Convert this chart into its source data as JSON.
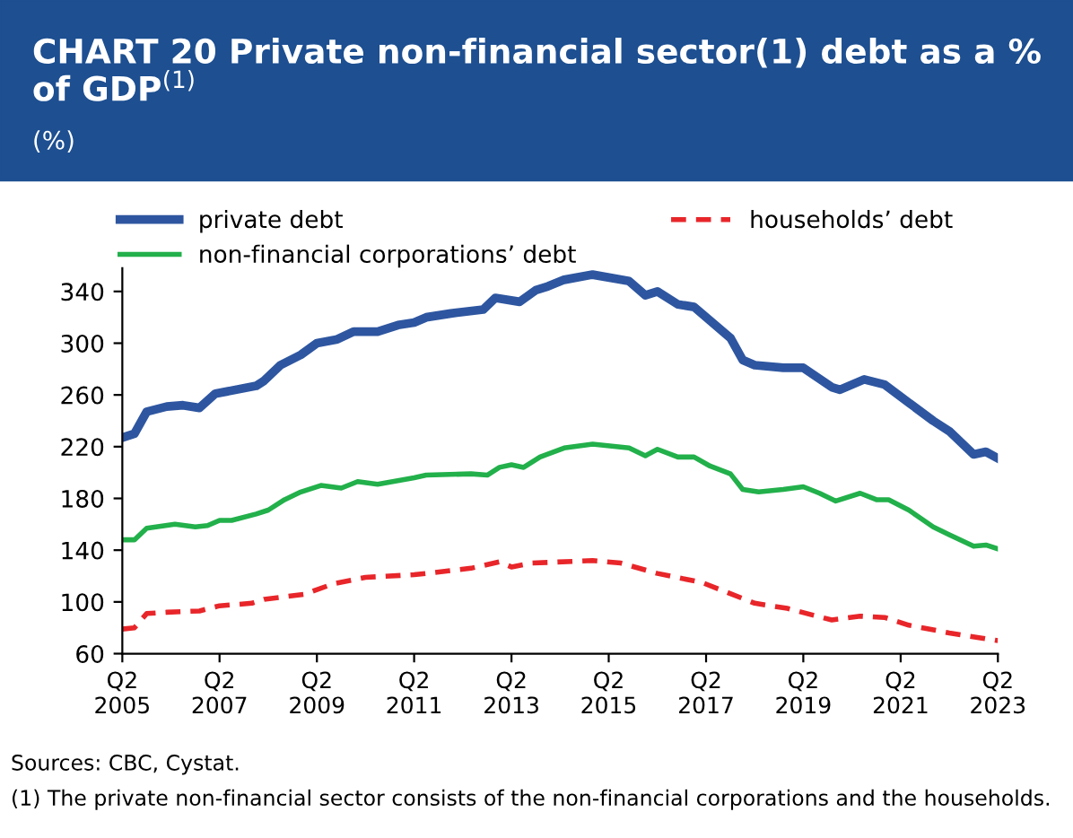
{
  "chart_data": {
    "type": "line",
    "title": "CHART 20 Private non-financial sector(1) debt as a % of GDP$^{(1)}$",
    "subtitle": "(%)",
    "xlim": [
      "2005-04",
      "2023-04"
    ],
    "xticks": [
      {
        "value": "2005-04",
        "label": "Q2\n2005"
      },
      {
        "value": "2007-04",
        "label": "Q2\n2007"
      },
      {
        "value": "2009-04",
        "label": "Q2\n2009"
      },
      {
        "value": "2011-04",
        "label": "Q2\n2011"
      },
      {
        "value": "2013-04",
        "label": "Q2\n2013"
      },
      {
        "value": "2015-04",
        "label": "Q2\n2015"
      },
      {
        "value": "2017-04",
        "label": "Q2\n2017"
      },
      {
        "value": "2019-04",
        "label": "Q2\n2019"
      },
      {
        "value": "2021-04",
        "label": "Q2\n2021"
      },
      {
        "value": "2023-04",
        "label": "Q2\n2023"
      }
    ],
    "ylim": [
      60,
      358
    ],
    "yticks": [
      60,
      100,
      140,
      180,
      220,
      260,
      300,
      340
    ],
    "grid": false,
    "legend": "top",
    "series": [
      {
        "name": "private debt",
        "color": "#2e56a0",
        "line_style": "solid",
        "x": [
          "2005-04",
          "2005-07",
          "2005-10",
          "2006-03",
          "2006-07",
          "2006-11",
          "2007-03",
          "2008-01",
          "2008-03",
          "2008-07",
          "2008-12",
          "2009-04",
          "2009-09",
          "2010-01",
          "2010-04",
          "2010-07",
          "2010-12",
          "2011-04",
          "2011-07",
          "2012-01",
          "2012-09",
          "2012-12",
          "2013-06",
          "2013-10",
          "2014-01",
          "2014-05",
          "2014-12",
          "2015-09",
          "2016-01",
          "2016-04",
          "2016-09",
          "2017-01",
          "2017-10",
          "2018-01",
          "2018-04",
          "2018-11",
          "2019-04",
          "2019-11",
          "2020-01",
          "2020-07",
          "2020-12",
          "2021-06",
          "2021-12",
          "2022-04",
          "2022-10",
          "2023-01",
          "2023-04"
        ],
        "values": [
          227,
          230,
          247,
          251,
          252,
          250,
          261,
          267,
          271,
          283,
          291,
          300,
          303,
          309,
          309,
          309,
          314,
          316,
          320,
          323,
          326,
          335,
          332,
          341,
          344,
          349,
          353,
          348,
          337,
          340,
          330,
          328,
          304,
          287,
          283,
          281,
          281,
          266,
          264,
          272,
          268,
          254,
          240,
          232,
          214,
          216,
          211
        ]
      },
      {
        "name": "non-financial corporations’ debt",
        "color": "#22b04b",
        "line_style": "solid",
        "x": [
          "2005-04",
          "2005-07",
          "2005-10",
          "2006-05",
          "2006-10",
          "2007-01",
          "2007-04",
          "2007-07",
          "2008-01",
          "2008-04",
          "2008-08",
          "2008-12",
          "2009-05",
          "2009-10",
          "2010-02",
          "2010-07",
          "2011-04",
          "2011-07",
          "2012-06",
          "2012-10",
          "2013-01",
          "2013-04",
          "2013-07",
          "2013-11",
          "2014-05",
          "2014-12",
          "2015-09",
          "2016-01",
          "2016-04",
          "2016-09",
          "2017-01",
          "2017-05",
          "2017-10",
          "2018-01",
          "2018-05",
          "2018-11",
          "2019-04",
          "2019-08",
          "2019-12",
          "2020-06",
          "2020-10",
          "2021-01",
          "2021-06",
          "2021-12",
          "2022-04",
          "2022-10",
          "2023-01",
          "2023-04"
        ],
        "values": [
          148,
          148,
          157,
          160,
          158,
          159,
          163,
          163,
          168,
          171,
          179,
          185,
          190,
          188,
          193,
          191,
          196,
          198,
          199,
          198,
          204,
          206,
          204,
          212,
          219,
          222,
          219,
          213,
          218,
          212,
          212,
          205,
          199,
          187,
          185,
          187,
          189,
          184,
          178,
          184,
          179,
          179,
          171,
          158,
          152,
          143,
          144,
          141
        ]
      },
      {
        "name": "households’ debt",
        "color": "#e8262a",
        "line_style": "dashed",
        "x": [
          "2005-04",
          "2005-07",
          "2005-10",
          "2006-03",
          "2006-11",
          "2007-04",
          "2007-12",
          "2008-03",
          "2009-01",
          "2009-08",
          "2010-04",
          "2011-04",
          "2012-06",
          "2013-01",
          "2013-04",
          "2013-09",
          "2014-12",
          "2015-07",
          "2016-04",
          "2017-03",
          "2018-04",
          "2018-12",
          "2019-11",
          "2020-06",
          "2020-12",
          "2021-06",
          "2022-04",
          "2022-12",
          "2023-04"
        ],
        "values": [
          79,
          80,
          91,
          92,
          93,
          97,
          99,
          102,
          106,
          114,
          119,
          121,
          126,
          131,
          127,
          130,
          132,
          130,
          122,
          115,
          99,
          95,
          86,
          89,
          88,
          82,
          76,
          72,
          70
        ]
      }
    ],
    "annotations": [
      "Sources: CBC, Cystat.",
      "(1) The private non-financial sector consists of the non-financial corporations and the households."
    ]
  }
}
